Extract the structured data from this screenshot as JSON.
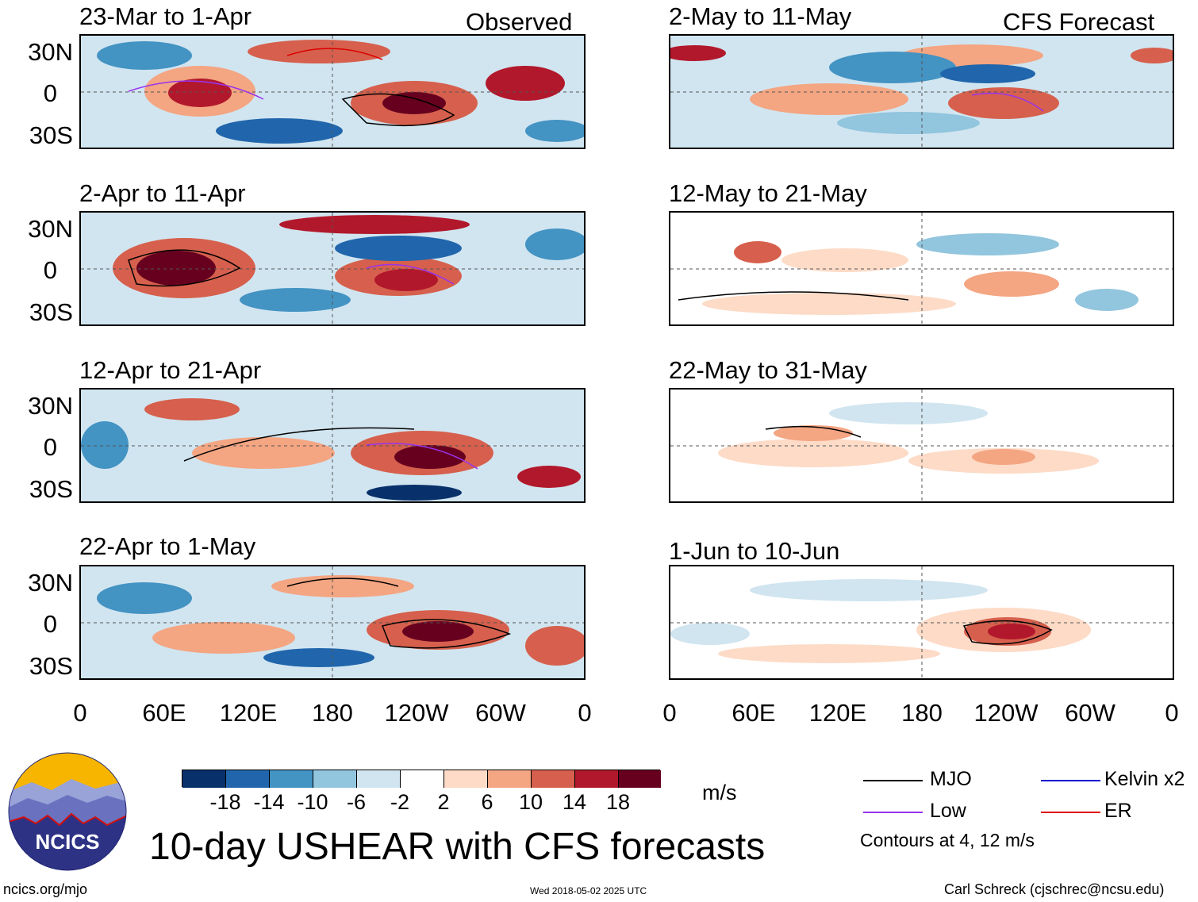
{
  "panel_headers": {
    "left": "Observed",
    "right": "CFS Forecast"
  },
  "panels_left": [
    {
      "title": "23-Mar to 1-Apr"
    },
    {
      "title": "2-Apr to 11-Apr"
    },
    {
      "title": "12-Apr to 21-Apr"
    },
    {
      "title": "22-Apr to 1-May"
    }
  ],
  "panels_right": [
    {
      "title": "2-May to 11-May"
    },
    {
      "title": "12-May to 21-May"
    },
    {
      "title": "22-May to 31-May"
    },
    {
      "title": "1-Jun to 10-Jun"
    }
  ],
  "y_ticks": [
    "30N",
    "0",
    "30S"
  ],
  "x_ticks": [
    "0",
    "60E",
    "120E",
    "180",
    "120W",
    "60W",
    "0"
  ],
  "colorbar": {
    "colors": [
      "#08306b",
      "#2166ac",
      "#4393c3",
      "#92c5de",
      "#d1e5f0",
      "#ffffff",
      "#fddbc7",
      "#f4a582",
      "#d6604d",
      "#b2182b",
      "#67001f"
    ],
    "labels": [
      "-18",
      "-14",
      "-10",
      "-6",
      "-2",
      "2",
      "6",
      "10",
      "14",
      "18"
    ],
    "units": "m/s"
  },
  "legend": {
    "items": [
      {
        "label": "MJO",
        "color": "#000000"
      },
      {
        "label": "Kelvin x2",
        "color": "#0000cc"
      },
      {
        "label": "Low",
        "color": "#9933ee"
      },
      {
        "label": "ER",
        "color": "#dd0000"
      }
    ],
    "note": "Contours at 4, 12 m/s"
  },
  "logo_text": "NCICS",
  "main_title": "10-day USHEAR with CFS forecasts",
  "footer": {
    "left": "ncics.org/mjo",
    "center": "Wed 2018-05-02 2025 UTC",
    "right": "Carl Schreck (cjschrec@ncsu.edu)"
  }
}
